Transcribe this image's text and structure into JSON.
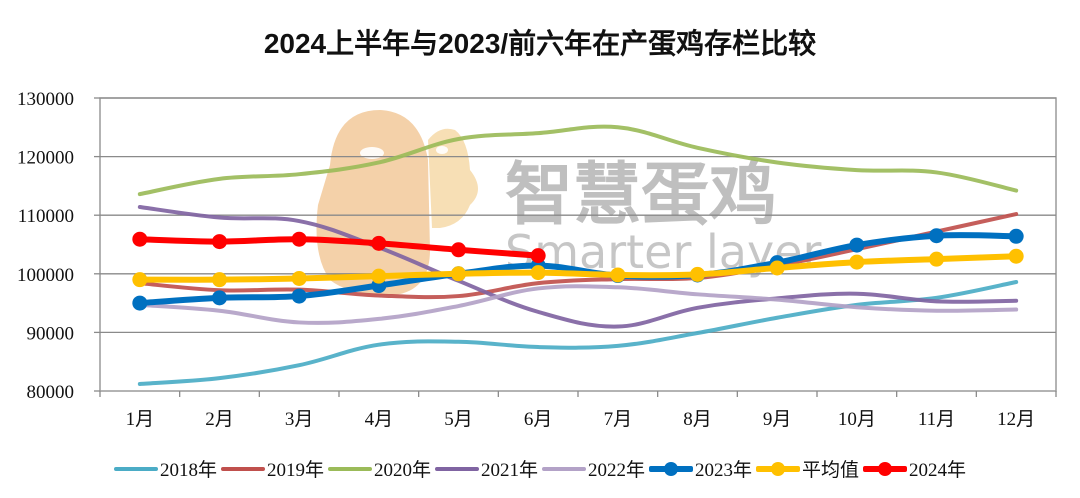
{
  "title": "2024上半年与2023/前六年在产蛋鸡存栏比较",
  "watermark": {
    "cn": "智慧蛋鸡",
    "en": "Smarter layer",
    "logo": "chicken-egg-logo"
  },
  "chart_data": {
    "type": "line",
    "title": "2024上半年与2023/前六年在产蛋鸡存栏比较",
    "xlabel": "",
    "ylabel": "",
    "ylim": [
      80000,
      130000
    ],
    "yticks": [
      80000,
      90000,
      100000,
      110000,
      120000,
      130000
    ],
    "grid": true,
    "legend_position": "bottom",
    "categories": [
      "1月",
      "2月",
      "3月",
      "4月",
      "5月",
      "6月",
      "7月",
      "8月",
      "9月",
      "10月",
      "11月",
      "12月"
    ],
    "series": [
      {
        "name": "2018年",
        "color": "#4bacc6",
        "markers": false,
        "width": 4,
        "values": [
          81200,
          82200,
          84400,
          87900,
          88400,
          87500,
          87700,
          89900,
          92500,
          94700,
          95900,
          98600
        ]
      },
      {
        "name": "2019年",
        "color": "#c0504d",
        "markers": false,
        "width": 4,
        "values": [
          98400,
          97200,
          97300,
          96300,
          96200,
          98400,
          99100,
          99300,
          101400,
          104200,
          107200,
          110200
        ]
      },
      {
        "name": "2020年",
        "color": "#9bbb59",
        "markers": false,
        "width": 4,
        "values": [
          113600,
          116200,
          117000,
          119000,
          123000,
          124000,
          125000,
          121500,
          119000,
          117700,
          117300,
          114200
        ]
      },
      {
        "name": "2021年",
        "color": "#8064a2",
        "markers": false,
        "width": 4,
        "values": [
          111400,
          109600,
          109000,
          104500,
          98800,
          93500,
          91000,
          94200,
          95800,
          96600,
          95300,
          95400
        ]
      },
      {
        "name": "2022年",
        "color": "#b3a2c7",
        "markers": false,
        "width": 4,
        "values": [
          94700,
          93700,
          91700,
          92300,
          94500,
          97500,
          97700,
          96500,
          95600,
          94300,
          93700,
          93900
        ]
      },
      {
        "name": "2023年",
        "color": "#0070c0",
        "markers": true,
        "width": 6,
        "values": [
          95000,
          95900,
          96200,
          98000,
          100000,
          101400,
          99700,
          99800,
          101900,
          104900,
          106500,
          106400
        ]
      },
      {
        "name": "平均值",
        "color": "#ffc000",
        "markers": true,
        "width": 6,
        "values": [
          99000,
          99000,
          99200,
          99600,
          100000,
          100200,
          99800,
          99900,
          101000,
          102000,
          102500,
          103000
        ]
      },
      {
        "name": "2024年",
        "color": "#ff0000",
        "markers": true,
        "width": 6,
        "values": [
          105900,
          105500,
          105900,
          105200,
          104100,
          103100
        ]
      }
    ]
  }
}
